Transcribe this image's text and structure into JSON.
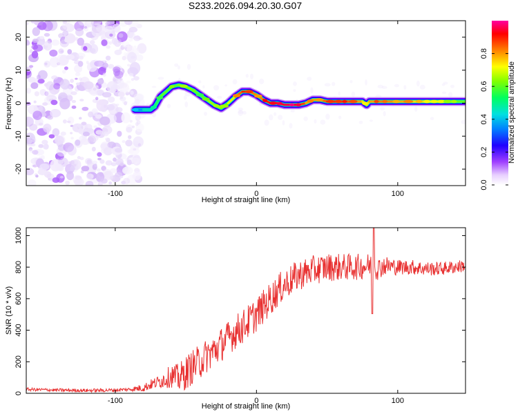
{
  "title": "S233.2026.094.20.30.G07",
  "chart_data": [
    {
      "type": "heatmap",
      "name": "spectrogram",
      "xlabel": "Height of straight line (km)",
      "ylabel": "Frequency (Hz)",
      "xlim": [
        -163,
        148
      ],
      "ylim": [
        -25,
        25
      ],
      "xticks": [
        -100,
        0,
        100
      ],
      "xtick_labels": [
        "-100",
        "0",
        "100"
      ],
      "yticks": [
        -20,
        -10,
        0,
        10,
        20
      ],
      "ytick_labels": [
        "-20",
        "-10",
        "0",
        "10",
        "20"
      ],
      "colorbar": {
        "label": "Normalized spectral amplitude",
        "range": [
          0,
          1
        ],
        "ticks": [
          0.0,
          0.2,
          0.4,
          0.6,
          0.8
        ],
        "tick_labels": [
          "0.0",
          "0.2",
          "0.4",
          "0.6",
          "0.8"
        ],
        "colormap": [
          "#ffffff",
          "#d8c0f8",
          "#8000ff",
          "#0000ff",
          "#00c0ff",
          "#00ff80",
          "#80ff00",
          "#ffff00",
          "#ff8000",
          "#ff0000",
          "#ff0080"
        ]
      },
      "noise_region_x": [
        -163,
        -85
      ],
      "ridge": {
        "x": [
          -86,
          -80,
          -75,
          -72,
          -68,
          -64,
          -60,
          -55,
          -50,
          -45,
          -40,
          -35,
          -30,
          -25,
          -20,
          -15,
          -10,
          -5,
          0,
          5,
          10,
          15,
          20,
          25,
          30,
          35,
          40,
          45,
          50,
          55,
          60,
          65,
          70,
          75,
          78,
          80,
          85,
          90,
          100,
          110,
          120,
          130,
          140,
          148
        ],
        "y": [
          -2,
          -2,
          -2,
          -1,
          2,
          3.5,
          5,
          5.5,
          5,
          4,
          2.5,
          1,
          -0.5,
          -1.5,
          0,
          2,
          3.5,
          3.5,
          2.5,
          1,
          0,
          0,
          -0.5,
          -0.5,
          -0.5,
          0,
          1,
          1,
          0.5,
          0.5,
          0.5,
          0.5,
          0.5,
          0.5,
          -0.5,
          0.5,
          0.5,
          0.5,
          0.5,
          0.5,
          0.5,
          0.5,
          0.5,
          0.5
        ],
        "amplitude": [
          0.35,
          0.4,
          0.45,
          0.5,
          0.55,
          0.6,
          0.55,
          0.6,
          0.6,
          0.6,
          0.55,
          0.6,
          0.65,
          0.6,
          0.6,
          0.75,
          0.9,
          0.85,
          0.75,
          0.85,
          0.9,
          0.92,
          0.95,
          0.95,
          0.9,
          0.8,
          0.75,
          0.8,
          0.85,
          0.88,
          0.88,
          0.85,
          0.8,
          0.75,
          0.7,
          0.75,
          0.8,
          0.8,
          0.78,
          0.75,
          0.7,
          0.65,
          0.6,
          0.55
        ]
      }
    },
    {
      "type": "line",
      "name": "snr",
      "xlabel": "Height of straight line (km)",
      "ylabel": "SNR (10 * v/v)",
      "xlim": [
        -163,
        148
      ],
      "ylim": [
        0,
        1050
      ],
      "xticks": [
        -100,
        0,
        100
      ],
      "xtick_labels": [
        "-100",
        "0",
        "100"
      ],
      "yticks": [
        0,
        200,
        400,
        600,
        800,
        1000
      ],
      "ytick_labels": [
        "0",
        "200",
        "400",
        "600",
        "800",
        "1000"
      ],
      "color": "#e83030",
      "envelope": {
        "x": [
          -163,
          -140,
          -120,
          -100,
          -90,
          -80,
          -75,
          -70,
          -65,
          -60,
          -55,
          -50,
          -45,
          -40,
          -35,
          -30,
          -25,
          -20,
          -15,
          -10,
          -5,
          0,
          5,
          10,
          15,
          20,
          25,
          30,
          40,
          50,
          60,
          70,
          80,
          83,
          86,
          90,
          100,
          110,
          120,
          130,
          140,
          148
        ],
        "y": [
          25,
          20,
          18,
          20,
          25,
          35,
          55,
          70,
          90,
          110,
          95,
          130,
          170,
          200,
          240,
          270,
          310,
          350,
          390,
          420,
          460,
          500,
          550,
          600,
          650,
          690,
          720,
          750,
          780,
          800,
          800,
          800,
          810,
          800,
          790,
          810,
          800,
          800,
          790,
          790,
          800,
          810
        ]
      },
      "noise_amplitude": {
        "x": [
          -163,
          -90,
          -70,
          -50,
          0,
          50,
          80,
          100,
          148
        ],
        "y": [
          10,
          12,
          40,
          110,
          110,
          90,
          80,
          50,
          40
        ]
      },
      "annotations": [
        {
          "x": 83,
          "y": 1050,
          "note": "spike"
        },
        {
          "x": 82,
          "y": 505,
          "note": "dip"
        }
      ]
    }
  ]
}
